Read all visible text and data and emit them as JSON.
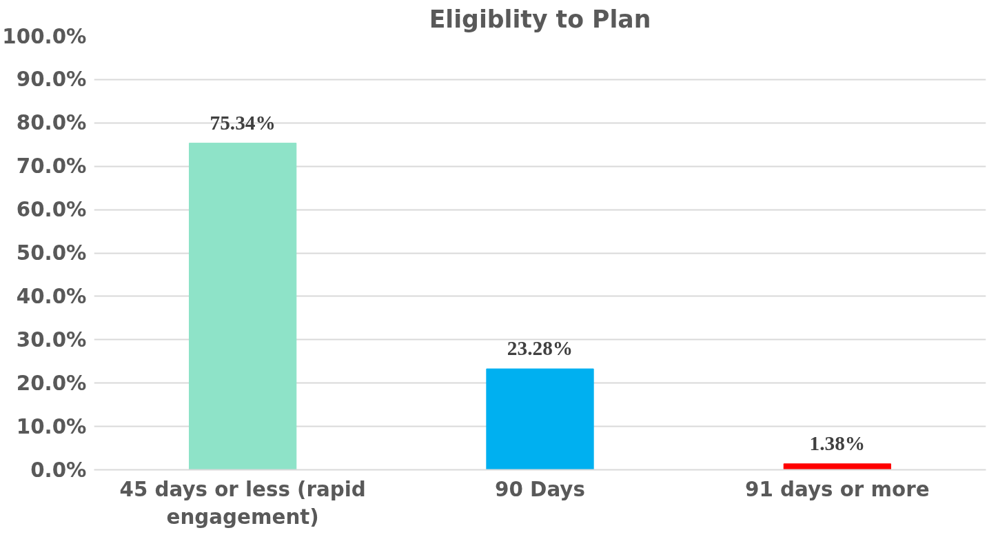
{
  "chart_data": {
    "type": "bar",
    "title": "Eligiblity to Plan",
    "categories": [
      "45 days or less (rapid engagement)",
      "90 Days",
      "91 days or more"
    ],
    "values": [
      75.34,
      23.28,
      1.38
    ],
    "colors": [
      "#8ee3c8",
      "#00b0f0",
      "#ff0000"
    ],
    "value_labels": [
      "75.34%",
      "23.28%",
      "1.38%"
    ],
    "ylim": [
      0,
      100
    ],
    "yticks": [
      {
        "value": 0,
        "label": "0.0%"
      },
      {
        "value": 10,
        "label": "10.0%"
      },
      {
        "value": 20,
        "label": "20.0%"
      },
      {
        "value": 30,
        "label": "30.0%"
      },
      {
        "value": 40,
        "label": "40.0%"
      },
      {
        "value": 50,
        "label": "50.0%"
      },
      {
        "value": 60,
        "label": "60.0%"
      },
      {
        "value": 70,
        "label": "70.0%"
      },
      {
        "value": 80,
        "label": "80.0%"
      },
      {
        "value": 90,
        "label": "90.0%"
      },
      {
        "value": 100,
        "label": "100.0%"
      }
    ],
    "grid": "y"
  }
}
